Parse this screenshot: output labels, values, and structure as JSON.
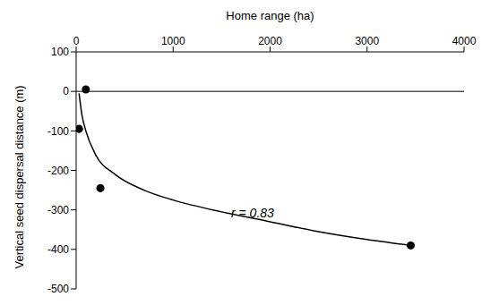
{
  "chart_data": {
    "type": "scatter",
    "x_label": "Home range (ha)",
    "y_label": "Vertical seed dispersal distance (m)",
    "xlim": [
      0,
      4000
    ],
    "xticks": [
      0,
      1000,
      2000,
      3000,
      4000
    ],
    "ylim": [
      -500,
      100
    ],
    "yticks": [
      -500,
      -400,
      -300,
      -200,
      -100,
      0,
      100
    ],
    "grid": false,
    "series": [
      {
        "type": "scatter",
        "color": "#000000",
        "marker": "circle",
        "x": [
          100,
          30,
          250,
          3450
        ],
        "values": [
          5,
          -95,
          -245,
          -390
        ]
      },
      {
        "type": "line",
        "color": "#000000",
        "line_style": "solid",
        "x": [
          30,
          60,
          100,
          200,
          400,
          700,
          1000,
          1500,
          2000,
          2500,
          3000,
          3450
        ],
        "values": [
          -5,
          -60,
          -100,
          -160,
          -210,
          -250,
          -275,
          -305,
          -330,
          -355,
          -375,
          -390
        ]
      }
    ],
    "annotations": [
      {
        "text": "r = 0.83"
      }
    ]
  }
}
